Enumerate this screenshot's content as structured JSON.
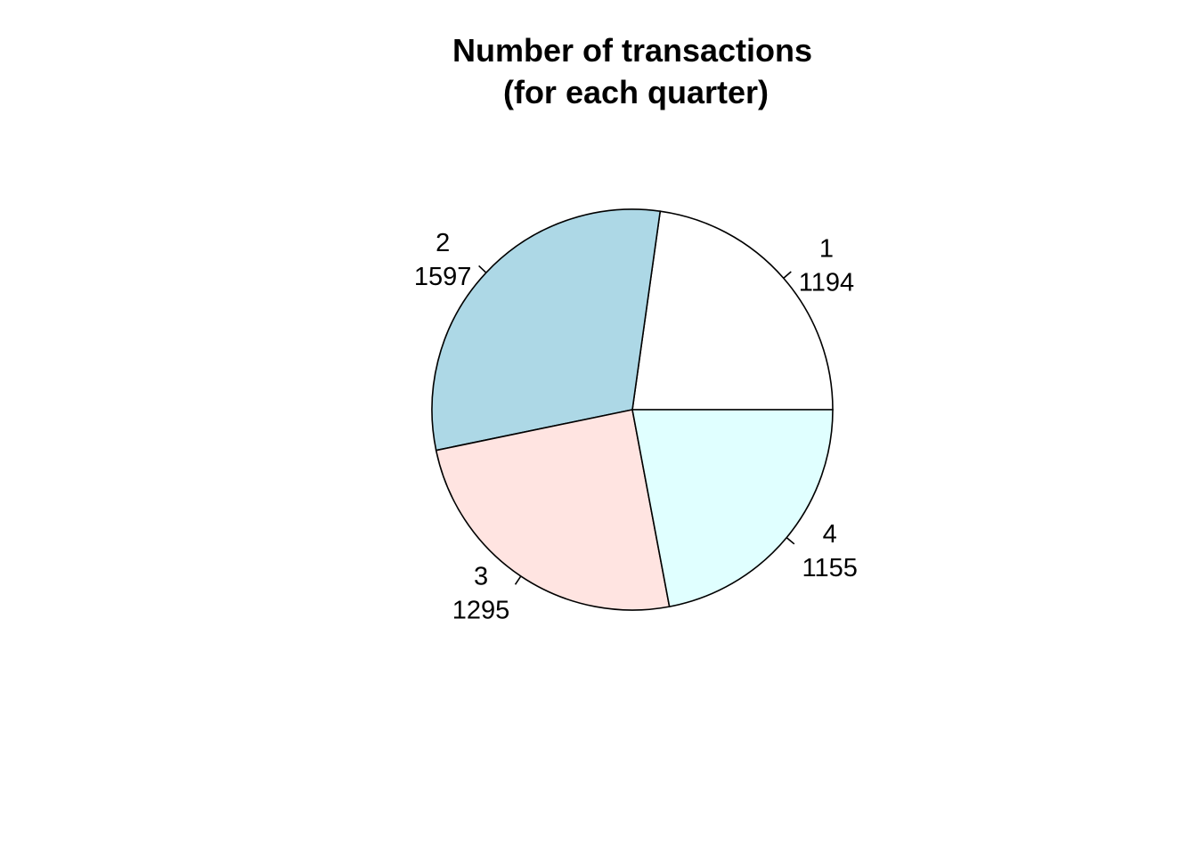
{
  "chart_data": {
    "type": "pie",
    "title": [
      "Number of transactions",
      "(for each quarter)"
    ],
    "slices": [
      {
        "label": "1",
        "value": 1194,
        "value_text": "1194",
        "color": "#ffffff"
      },
      {
        "label": "2",
        "value": 1597,
        "value_text": "1597",
        "color": "#add8e6"
      },
      {
        "label": "3",
        "value": 1295,
        "value_text": "1295",
        "color": "#ffe4e1"
      },
      {
        "label": "4",
        "value": 1155,
        "value_text": "1155",
        "color": "#e0ffff"
      }
    ],
    "start_angle_deg": 0,
    "direction": "counterclockwise"
  }
}
